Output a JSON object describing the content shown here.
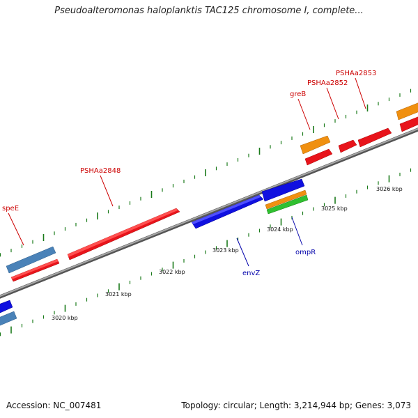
{
  "title": "Pseudoalteromonas haloplanktis TAC125 chromosome I, complete...",
  "footer": {
    "accession": "Accession: NC_007481",
    "summary": "Topology: circular; Length: 3,214,944 bp; Genes: 3,073"
  },
  "colors": {
    "forward_gene": "#e8141b",
    "reverse_gene": "#1010e0",
    "steelblue_gene": "#4a82b8",
    "orange_gene": "#f09010",
    "green_gene": "#30c030",
    "tick": "#1a7a1a",
    "backbone": "#7a7a7a",
    "label_red": "#cc0000",
    "label_blue": "#0000aa"
  },
  "scale_labels": [
    {
      "text": "3020 kbp"
    },
    {
      "text": "3021 kbp"
    },
    {
      "text": "3022 kbp"
    },
    {
      "text": "3023 kbp"
    },
    {
      "text": "3024 kbp"
    },
    {
      "text": "3025 kbp"
    },
    {
      "text": "3026 kbp"
    }
  ],
  "gene_labels": [
    {
      "text": "speE",
      "color": "red"
    },
    {
      "text": "PSHAa2848",
      "color": "red"
    },
    {
      "text": "greB",
      "color": "red"
    },
    {
      "text": "PSHAa2852",
      "color": "red"
    },
    {
      "text": "PSHAa2853",
      "color": "red"
    },
    {
      "text": "envZ",
      "color": "blue"
    },
    {
      "text": "ompR",
      "color": "blue"
    }
  ]
}
